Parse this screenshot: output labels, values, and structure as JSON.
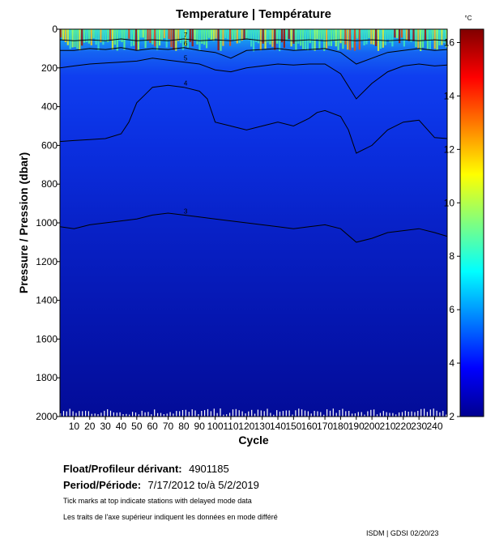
{
  "chart_data": {
    "type": "heatmap",
    "title": "Temperature | Température",
    "xlabel": "Cycle",
    "ylabel": "Pressure / Pression (dbar)",
    "x_ticks": [
      10,
      20,
      30,
      40,
      50,
      60,
      70,
      80,
      90,
      100,
      110,
      120,
      130,
      140,
      150,
      160,
      170,
      180,
      190,
      200,
      210,
      220,
      230,
      240
    ],
    "xlim": [
      1,
      248
    ],
    "y_ticks": [
      0,
      200,
      400,
      600,
      800,
      1000,
      1200,
      1400,
      1600,
      1800,
      2000
    ],
    "ylim": [
      0,
      2000
    ],
    "y_inverted": true,
    "colorbar": {
      "unit": "°C",
      "ticks": [
        2,
        4,
        6,
        8,
        10,
        12,
        14,
        16
      ],
      "range": [
        2,
        16.5
      ],
      "colormap": "jet"
    },
    "contour_levels": [
      3,
      4,
      5,
      6,
      7
    ],
    "isotherms": [
      {
        "level": 7,
        "depth": [
          [
            1,
            55
          ],
          [
            10,
            60
          ],
          [
            20,
            55
          ],
          [
            30,
            60
          ],
          [
            40,
            50
          ],
          [
            50,
            60
          ],
          [
            60,
            55
          ],
          [
            70,
            60
          ],
          [
            80,
            50
          ],
          [
            90,
            60
          ],
          [
            100,
            55
          ],
          [
            110,
            60
          ],
          [
            120,
            50
          ],
          [
            130,
            60
          ],
          [
            140,
            55
          ],
          [
            150,
            60
          ],
          [
            160,
            55
          ],
          [
            170,
            60
          ],
          [
            180,
            55
          ],
          [
            190,
            60
          ],
          [
            200,
            55
          ],
          [
            210,
            60
          ],
          [
            220,
            55
          ],
          [
            230,
            60
          ],
          [
            240,
            55
          ],
          [
            248,
            60
          ]
        ]
      },
      {
        "level": 6,
        "depth": [
          [
            1,
            110
          ],
          [
            10,
            110
          ],
          [
            20,
            100
          ],
          [
            30,
            105
          ],
          [
            40,
            95
          ],
          [
            50,
            110
          ],
          [
            60,
            100
          ],
          [
            70,
            105
          ],
          [
            80,
            95
          ],
          [
            90,
            110
          ],
          [
            100,
            120
          ],
          [
            110,
            150
          ],
          [
            120,
            110
          ],
          [
            130,
            105
          ],
          [
            140,
            100
          ],
          [
            150,
            110
          ],
          [
            160,
            105
          ],
          [
            170,
            100
          ],
          [
            180,
            120
          ],
          [
            190,
            180
          ],
          [
            200,
            150
          ],
          [
            210,
            120
          ],
          [
            220,
            110
          ],
          [
            230,
            100
          ],
          [
            240,
            110
          ],
          [
            248,
            105
          ]
        ]
      },
      {
        "level": 5,
        "depth": [
          [
            1,
            200
          ],
          [
            10,
            190
          ],
          [
            20,
            180
          ],
          [
            30,
            175
          ],
          [
            40,
            170
          ],
          [
            50,
            165
          ],
          [
            60,
            150
          ],
          [
            70,
            160
          ],
          [
            80,
            170
          ],
          [
            90,
            180
          ],
          [
            100,
            210
          ],
          [
            110,
            220
          ],
          [
            120,
            200
          ],
          [
            130,
            190
          ],
          [
            140,
            180
          ],
          [
            150,
            185
          ],
          [
            160,
            180
          ],
          [
            170,
            180
          ],
          [
            180,
            230
          ],
          [
            190,
            360
          ],
          [
            200,
            280
          ],
          [
            210,
            220
          ],
          [
            220,
            190
          ],
          [
            230,
            180
          ],
          [
            240,
            190
          ],
          [
            248,
            185
          ]
        ]
      },
      {
        "level": 4,
        "depth": [
          [
            1,
            580
          ],
          [
            10,
            575
          ],
          [
            20,
            570
          ],
          [
            30,
            565
          ],
          [
            40,
            540
          ],
          [
            45,
            480
          ],
          [
            50,
            380
          ],
          [
            55,
            340
          ],
          [
            60,
            300
          ],
          [
            70,
            290
          ],
          [
            80,
            300
          ],
          [
            90,
            320
          ],
          [
            95,
            360
          ],
          [
            100,
            480
          ],
          [
            110,
            500
          ],
          [
            120,
            520
          ],
          [
            130,
            500
          ],
          [
            140,
            480
          ],
          [
            150,
            500
          ],
          [
            160,
            460
          ],
          [
            165,
            430
          ],
          [
            170,
            420
          ],
          [
            180,
            450
          ],
          [
            185,
            520
          ],
          [
            190,
            640
          ],
          [
            200,
            600
          ],
          [
            210,
            520
          ],
          [
            220,
            480
          ],
          [
            230,
            470
          ],
          [
            240,
            560
          ],
          [
            248,
            565
          ]
        ]
      },
      {
        "level": 3,
        "depth": [
          [
            1,
            1020
          ],
          [
            10,
            1030
          ],
          [
            20,
            1010
          ],
          [
            30,
            1000
          ],
          [
            40,
            990
          ],
          [
            50,
            980
          ],
          [
            60,
            960
          ],
          [
            70,
            950
          ],
          [
            80,
            960
          ],
          [
            90,
            970
          ],
          [
            100,
            980
          ],
          [
            110,
            990
          ],
          [
            120,
            1000
          ],
          [
            130,
            1010
          ],
          [
            140,
            1020
          ],
          [
            150,
            1030
          ],
          [
            160,
            1020
          ],
          [
            170,
            1010
          ],
          [
            180,
            1030
          ],
          [
            190,
            1100
          ],
          [
            200,
            1080
          ],
          [
            210,
            1050
          ],
          [
            220,
            1040
          ],
          [
            230,
            1030
          ],
          [
            240,
            1050
          ],
          [
            248,
            1070
          ]
        ]
      }
    ]
  },
  "info": {
    "float_label": "Float/Profileur dérivant:",
    "float_value": "4901185",
    "period_label": "Period/Période:",
    "period_value": "7/17/2012  to/à  5/2/2019",
    "note_en": "Tick marks at top indicate stations with delayed mode data",
    "note_fr": "Les traits de l'axe supérieur indiquent les données en mode différé",
    "credit": "ISDM | GDSI  02/20/23"
  }
}
